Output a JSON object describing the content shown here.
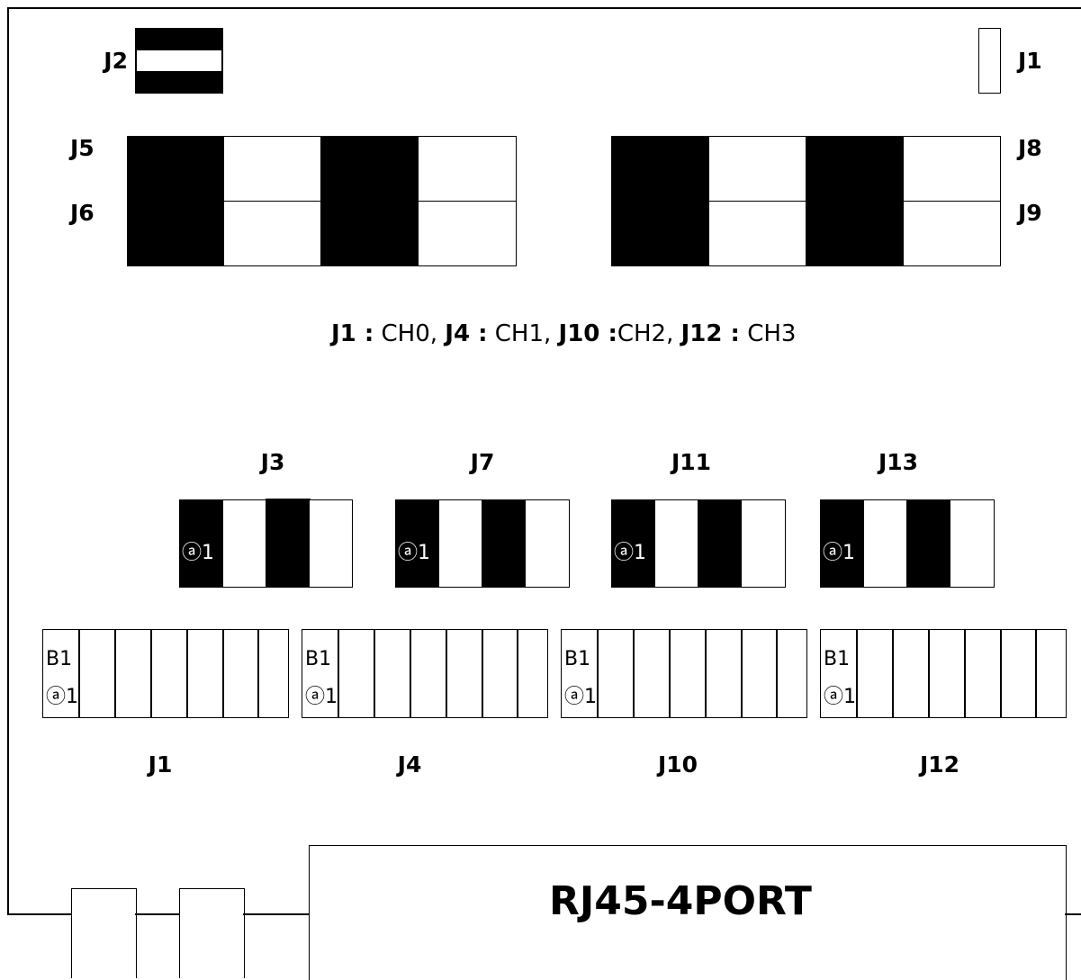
{
  "top_jumpers": {
    "j2_label": "J2",
    "j1_label": "J1"
  },
  "side_labels": {
    "j5": "J5",
    "j6": "J6",
    "j8": "J8",
    "j9": "J9"
  },
  "caption": {
    "j1_key": "J1 :",
    "j1_val": " CH0, ",
    "j4_key": "J4 :",
    "j4_val": " CH1, ",
    "j10_key": "J10 :",
    "j10_val": "CH2, ",
    "j12_key": "J12 :",
    "j12_val": " CH3"
  },
  "mid_jumpers": [
    {
      "label": "J3",
      "pin": "ⓐ1"
    },
    {
      "label": "J7",
      "pin": "ⓐ1"
    },
    {
      "label": "J11",
      "pin": "ⓐ1"
    },
    {
      "label": "J13",
      "pin": "ⓐ1"
    }
  ],
  "connectors": [
    {
      "label": "J1",
      "pin_b": "B1",
      "pin_a": "ⓐ1"
    },
    {
      "label": "J4",
      "pin_b": "B1",
      "pin_a": "ⓐ1"
    },
    {
      "label": "J10",
      "pin_b": "B1",
      "pin_a": "ⓐ1"
    },
    {
      "label": "J12",
      "pin_b": "B1",
      "pin_a": "ⓐ1"
    }
  ],
  "bracket": {
    "title": "RJ45-4PORT"
  }
}
